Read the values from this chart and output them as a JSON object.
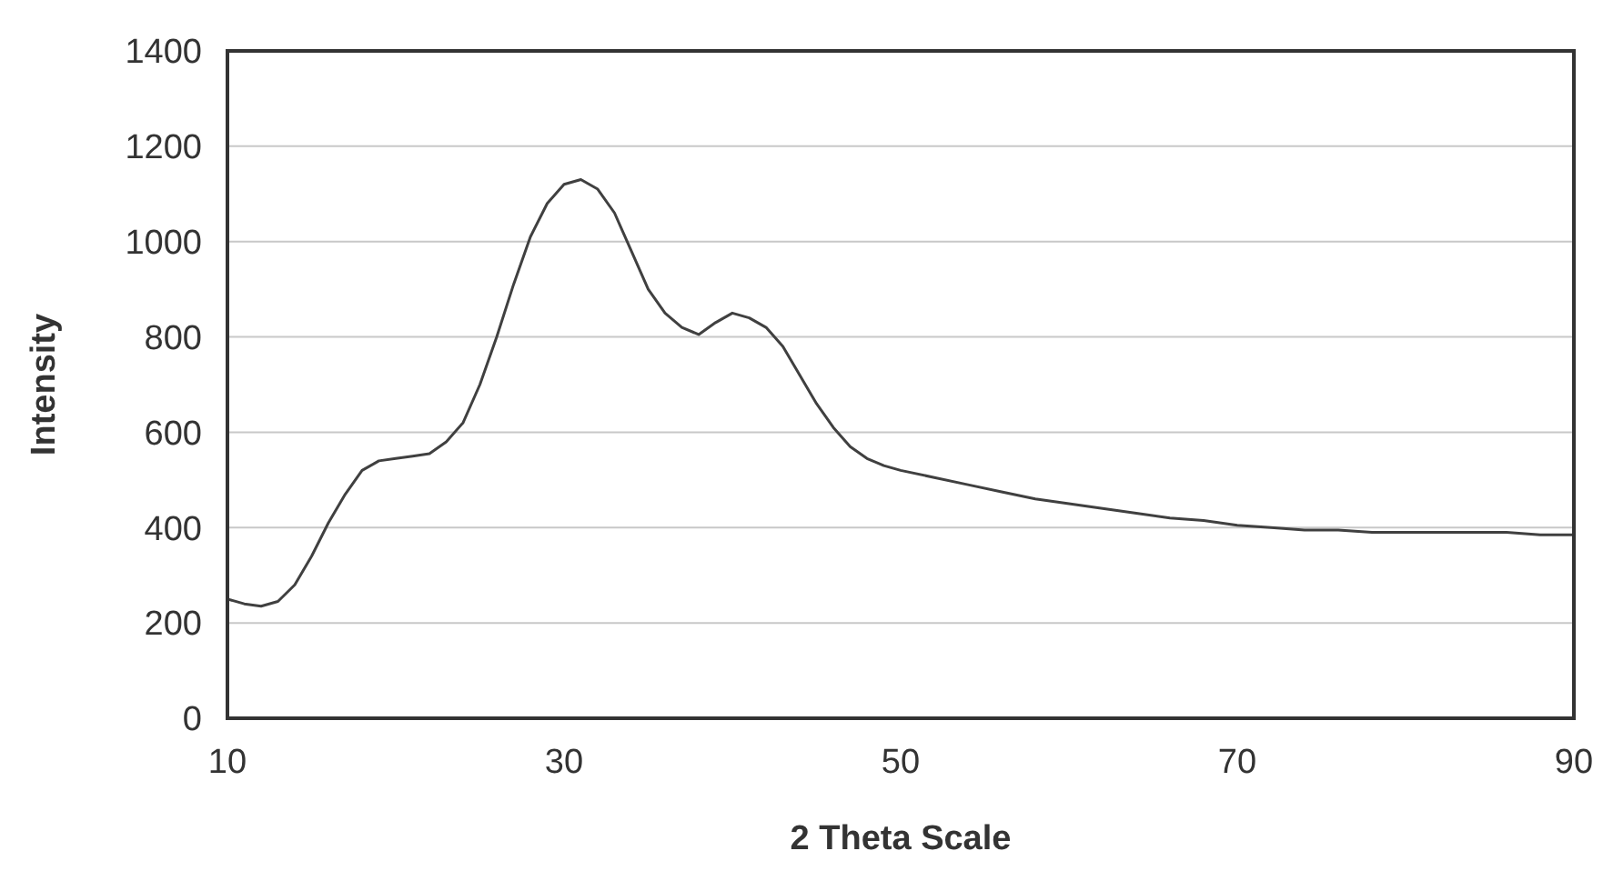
{
  "chart_data": {
    "type": "line",
    "xlabel": "2 Theta Scale",
    "ylabel": "Intensity",
    "xlim": [
      10,
      90
    ],
    "xticks": [
      10,
      30,
      50,
      70,
      90
    ],
    "ylim": [
      0,
      1400
    ],
    "yticks": [
      0,
      200,
      400,
      600,
      800,
      1000,
      1200,
      1400
    ],
    "grid": "y",
    "marker": "none",
    "line_style": "solid",
    "series": [
      {
        "color": "#404040",
        "x": [
          10,
          11,
          12,
          13,
          14,
          15,
          16,
          17,
          18,
          19,
          20,
          21,
          22,
          23,
          24,
          25,
          26,
          27,
          28,
          29,
          30,
          31,
          32,
          33,
          34,
          35,
          36,
          37,
          38,
          39,
          40,
          41,
          42,
          43,
          44,
          45,
          46,
          47,
          48,
          49,
          50,
          52,
          54,
          56,
          58,
          60,
          62,
          64,
          66,
          68,
          70,
          72,
          74,
          76,
          78,
          80,
          82,
          84,
          86,
          88,
          90
        ],
        "values": [
          250,
          240,
          235,
          245,
          280,
          340,
          410,
          470,
          520,
          540,
          545,
          550,
          555,
          580,
          620,
          700,
          800,
          910,
          1010,
          1080,
          1120,
          1130,
          1110,
          1060,
          980,
          900,
          850,
          820,
          805,
          830,
          850,
          840,
          820,
          780,
          720,
          660,
          610,
          570,
          545,
          530,
          520,
          505,
          490,
          475,
          460,
          450,
          440,
          430,
          420,
          415,
          405,
          400,
          395,
          395,
          390,
          390,
          390,
          390,
          390,
          385,
          385
        ]
      }
    ]
  }
}
